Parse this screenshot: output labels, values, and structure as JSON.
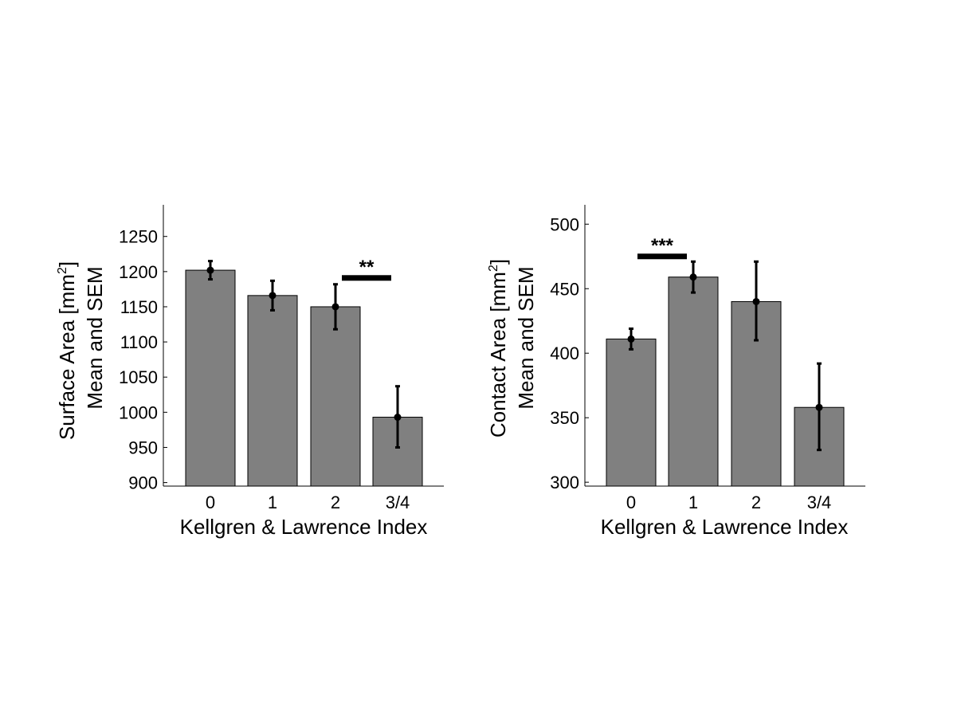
{
  "chart_data": [
    {
      "type": "bar",
      "categories": [
        "0",
        "1",
        "2",
        "3/4"
      ],
      "values": [
        1202,
        1166,
        1150,
        993
      ],
      "error_low": [
        1189,
        1145,
        1118,
        950
      ],
      "error_high": [
        1215,
        1187,
        1182,
        1037
      ],
      "ylim": [
        895,
        1295
      ],
      "yticks": [
        "900",
        "950",
        "1000",
        "1050",
        "1100",
        "1150",
        "1200",
        "1250"
      ],
      "xlabel": "Kellgren & Lawrence Index",
      "ylabel_line1_main": "Surface Area [mm",
      "ylabel_line1_sup": "2",
      "ylabel_line1_end": "]",
      "ylabel_line2": "Mean and SEM",
      "significance": {
        "label": "**",
        "from": "2",
        "to": "3/4",
        "y": 1191
      },
      "bar_color": "#808080"
    },
    {
      "type": "bar",
      "categories": [
        "0",
        "1",
        "2",
        "3/4"
      ],
      "values": [
        411,
        459,
        440,
        358
      ],
      "error_low": [
        403,
        447,
        410,
        325
      ],
      "error_high": [
        419,
        471,
        471,
        392
      ],
      "ylim": [
        297,
        515
      ],
      "yticks": [
        "300",
        "350",
        "400",
        "450",
        "500"
      ],
      "xlabel": "Kellgren & Lawrence Index",
      "ylabel_line1_main": "Contact Area [mm",
      "ylabel_line1_sup": "2",
      "ylabel_line1_end": "]",
      "ylabel_line2": "Mean and SEM",
      "significance": {
        "label": "***",
        "from": "0",
        "to": "1",
        "y": 475
      },
      "bar_color": "#808080"
    }
  ]
}
